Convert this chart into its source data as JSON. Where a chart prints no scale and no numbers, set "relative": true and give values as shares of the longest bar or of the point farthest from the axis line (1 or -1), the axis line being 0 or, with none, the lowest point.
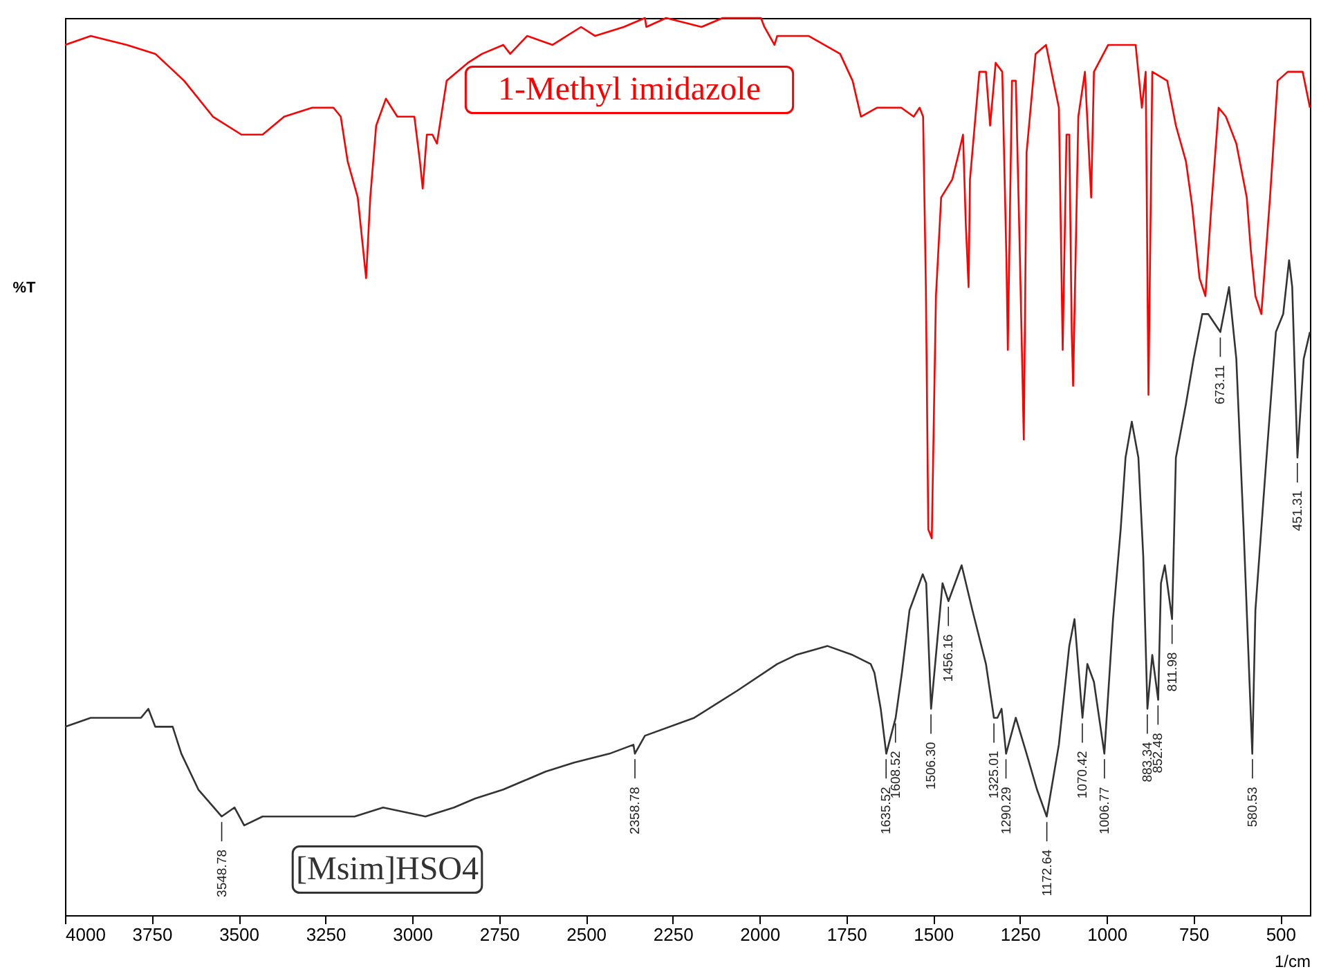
{
  "chart_data": {
    "type": "line",
    "xlabel": "1/cm",
    "ylabel": "%T",
    "relative": true,
    "xlim": [
      4000,
      415
    ],
    "xticks": [
      4000,
      3750,
      3500,
      3250,
      3000,
      2750,
      2500,
      2250,
      2000,
      1750,
      1500,
      1250,
      1000,
      750,
      500
    ],
    "series": [
      {
        "name": "1-Methyl imidazole",
        "color": "#ff0000",
        "x": [
          4000,
          3926,
          3822,
          3740,
          3657,
          3574,
          3492,
          3431,
          3369,
          3288,
          3227,
          3206,
          3186,
          3157,
          3141,
          3133,
          3121,
          3104,
          3076,
          3043,
          2994,
          2978,
          2970,
          2958,
          2942,
          2929,
          2901,
          2840,
          2799,
          2738,
          2718,
          2669,
          2596,
          2514,
          2474,
          2391,
          2330,
          2326,
          2269,
          2167,
          2106,
          1996,
          1986,
          1957,
          1949,
          1931,
          1859,
          1768,
          1732,
          1708,
          1662,
          1627,
          1592,
          1556,
          1539,
          1529,
          1521,
          1514,
          1504,
          1492,
          1477,
          1445,
          1426,
          1414,
          1406,
          1398,
          1394,
          1367,
          1348,
          1336,
          1320,
          1301,
          1289,
          1285,
          1273,
          1262,
          1250,
          1239,
          1231,
          1205,
          1175,
          1138,
          1127,
          1116,
          1108,
          1101,
          1097,
          1082,
          1063,
          1045,
          1037,
          996,
          917,
          899,
          888,
          880,
          869,
          826,
          801,
          772,
          754,
          733,
          716,
          699,
          678,
          657,
          627,
          597,
          585,
          572,
          555,
          530,
          508,
          479,
          436,
          415
        ],
        "values": [
          0.97,
          0.98,
          0.97,
          0.96,
          0.93,
          0.89,
          0.87,
          0.87,
          0.89,
          0.9,
          0.9,
          0.89,
          0.84,
          0.8,
          0.74,
          0.71,
          0.8,
          0.88,
          0.91,
          0.89,
          0.89,
          0.84,
          0.81,
          0.87,
          0.87,
          0.86,
          0.93,
          0.95,
          0.96,
          0.97,
          0.96,
          0.98,
          0.97,
          0.99,
          0.98,
          0.99,
          1.0,
          0.99,
          1.0,
          0.99,
          1.0,
          1.0,
          0.99,
          0.97,
          0.98,
          0.98,
          0.98,
          0.96,
          0.93,
          0.89,
          0.9,
          0.9,
          0.9,
          0.89,
          0.9,
          0.89,
          0.7,
          0.43,
          0.42,
          0.69,
          0.8,
          0.82,
          0.85,
          0.87,
          0.77,
          0.7,
          0.82,
          0.94,
          0.94,
          0.88,
          0.95,
          0.94,
          0.73,
          0.63,
          0.93,
          0.93,
          0.73,
          0.53,
          0.85,
          0.96,
          0.97,
          0.9,
          0.63,
          0.87,
          0.87,
          0.65,
          0.59,
          0.89,
          0.94,
          0.8,
          0.94,
          0.97,
          0.97,
          0.9,
          0.94,
          0.58,
          0.94,
          0.93,
          0.88,
          0.84,
          0.79,
          0.71,
          0.69,
          0.79,
          0.9,
          0.89,
          0.86,
          0.8,
          0.74,
          0.69,
          0.67,
          0.8,
          0.93,
          0.94,
          0.94,
          0.9
        ]
      },
      {
        "name": "[Msim]HSO4",
        "color": "#333333",
        "x": [
          4000,
          3926,
          3864,
          3781,
          3760,
          3740,
          3690,
          3665,
          3616,
          3549,
          3512,
          3484,
          3431,
          3370,
          3308,
          3247,
          3166,
          3084,
          2962,
          2880,
          2819,
          2738,
          2677,
          2616,
          2534,
          2432,
          2363,
          2359,
          2330,
          2188,
          2065,
          1949,
          1895,
          1804,
          1732,
          1680,
          1669,
          1651,
          1635,
          1608,
          1590,
          1568,
          1530,
          1520,
          1506,
          1473,
          1456,
          1418,
          1387,
          1348,
          1325,
          1315,
          1303,
          1290,
          1262,
          1231,
          1201,
          1173,
          1138,
          1108,
          1093,
          1070,
          1056,
          1037,
          1007,
          982,
          960,
          946,
          928,
          909,
          895,
          883,
          869,
          852,
          844,
          833,
          812,
          801,
          772,
          750,
          725,
          708,
          673,
          648,
          627,
          606,
          581,
          572,
          542,
          513,
          492,
          475,
          466,
          451,
          433,
          415
        ],
        "values": [
          0.21,
          0.22,
          0.22,
          0.22,
          0.23,
          0.21,
          0.21,
          0.18,
          0.14,
          0.11,
          0.12,
          0.1,
          0.11,
          0.11,
          0.11,
          0.11,
          0.11,
          0.12,
          0.11,
          0.12,
          0.13,
          0.14,
          0.15,
          0.16,
          0.17,
          0.18,
          0.19,
          0.18,
          0.2,
          0.22,
          0.25,
          0.28,
          0.29,
          0.3,
          0.29,
          0.28,
          0.27,
          0.23,
          0.18,
          0.22,
          0.27,
          0.34,
          0.38,
          0.37,
          0.23,
          0.37,
          0.35,
          0.39,
          0.34,
          0.28,
          0.22,
          0.22,
          0.23,
          0.18,
          0.22,
          0.18,
          0.14,
          0.11,
          0.19,
          0.3,
          0.33,
          0.22,
          0.28,
          0.26,
          0.18,
          0.33,
          0.43,
          0.51,
          0.55,
          0.51,
          0.4,
          0.23,
          0.29,
          0.24,
          0.37,
          0.39,
          0.33,
          0.51,
          0.57,
          0.62,
          0.67,
          0.67,
          0.65,
          0.7,
          0.62,
          0.43,
          0.18,
          0.34,
          0.5,
          0.65,
          0.67,
          0.73,
          0.7,
          0.51,
          0.62,
          0.65
        ]
      }
    ],
    "annotations": [
      {
        "text": "3548.78",
        "x": 3548.78,
        "y": 0.11
      },
      {
        "text": "2358.78",
        "x": 2358.78,
        "y": 0.18
      },
      {
        "text": "1635.52",
        "x": 1635.52,
        "y": 0.18
      },
      {
        "text": "1608.52",
        "x": 1608.52,
        "y": 0.22
      },
      {
        "text": "1506.30",
        "x": 1506.3,
        "y": 0.23
      },
      {
        "text": "1456.16",
        "x": 1456.16,
        "y": 0.35
      },
      {
        "text": "1325.01",
        "x": 1325.01,
        "y": 0.22
      },
      {
        "text": "1290.29",
        "x": 1290.29,
        "y": 0.18
      },
      {
        "text": "1172.64",
        "x": 1172.64,
        "y": 0.11
      },
      {
        "text": "1070.42",
        "x": 1070.42,
        "y": 0.22
      },
      {
        "text": "1006.77",
        "x": 1006.77,
        "y": 0.18
      },
      {
        "text": "883.34",
        "x": 883.34,
        "y": 0.23
      },
      {
        "text": "852.48",
        "x": 852.48,
        "y": 0.24
      },
      {
        "text": "811.98",
        "x": 811.98,
        "y": 0.33
      },
      {
        "text": "673.11",
        "x": 673.11,
        "y": 0.65
      },
      {
        "text": "580.53",
        "x": 580.53,
        "y": 0.18
      },
      {
        "text": "451.31",
        "x": 451.31,
        "y": 0.51
      }
    ]
  }
}
